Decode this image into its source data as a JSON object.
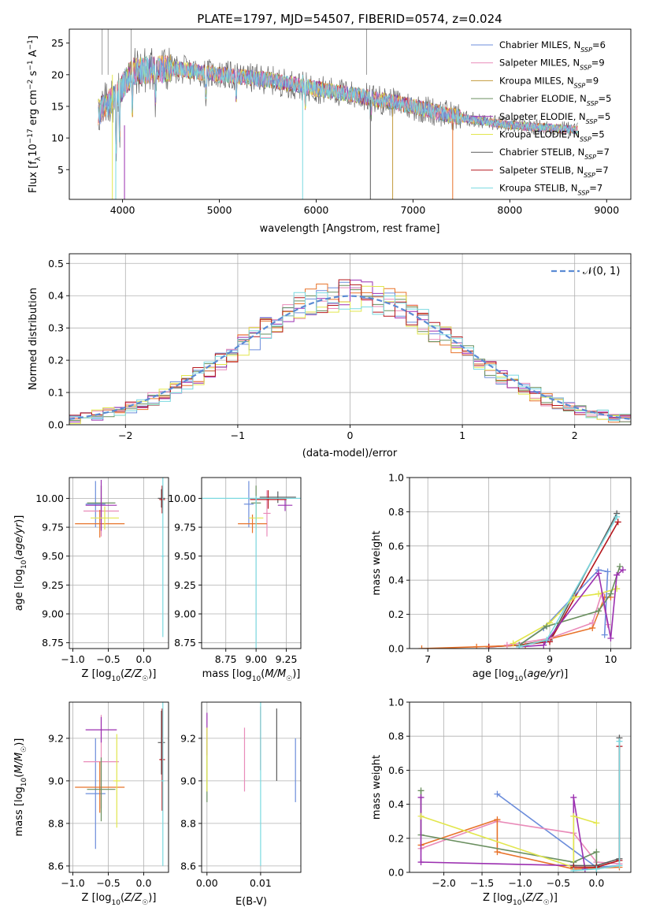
{
  "colors": {
    "chabrier_miles": "#6c8ddb",
    "salpeter_miles": "#e98bb9",
    "kroupa_miles": "#c29a3c",
    "chabrier_elodie": "#6a8f5f",
    "salpeter_elodie": "#9b2fb0",
    "kroupa_elodie": "#e2e64d",
    "chabrier_stelib": "#5b5b5b",
    "salpeter_stelib": "#b5171d",
    "kroupa_stelib": "#7ad9e0",
    "extra_orange": "#e8732a",
    "gaussian": "#5b8bd4"
  },
  "chart_data": [
    {
      "type": "line",
      "title": "PLATE=1797, MJD=54507, FIBERID=0574, z=0.024",
      "xlabel": "wavelength [Angstrom, rest frame]",
      "ylabel": "Flux [f_λ 10^-17 erg cm^-2 s^-1 A^-1]",
      "xlim": [
        3450,
        9250
      ],
      "ylim": [
        0.3,
        27.2
      ],
      "xticks": [
        "4000",
        "5000",
        "6000",
        "7000",
        "8000",
        "9000"
      ],
      "yticks": [
        "5",
        "10",
        "15",
        "20",
        "25"
      ],
      "series": [
        {
          "name": "Chabrier MILES",
          "nssp": "6"
        },
        {
          "name": "Salpeter MILES",
          "nssp": "9"
        },
        {
          "name": "Kroupa MILES",
          "nssp": "9"
        },
        {
          "name": "Chabrier ELODIE",
          "nssp": "5"
        },
        {
          "name": "Salpeter ELODIE",
          "nssp": "5"
        },
        {
          "name": "Kroupa ELODIE",
          "nssp": "5"
        },
        {
          "name": "Chabrier STELIB",
          "nssp": "7"
        },
        {
          "name": "Salpeter STELIB",
          "nssp": "7"
        },
        {
          "name": "Kroupa STELIB",
          "nssp": "7"
        }
      ],
      "continuum_points": [
        [
          3750,
          14
        ],
        [
          3950,
          17
        ],
        [
          4100,
          20.5
        ],
        [
          4500,
          21
        ],
        [
          5000,
          20
        ],
        [
          5500,
          19.2
        ],
        [
          6000,
          17.8
        ],
        [
          6500,
          16.5
        ],
        [
          7000,
          15
        ],
        [
          7500,
          13.2
        ],
        [
          8000,
          12
        ],
        [
          8500,
          11.5
        ],
        [
          8700,
          11.3
        ]
      ],
      "grid": false,
      "legend": "top-right"
    },
    {
      "type": "histogram",
      "xlabel": "(data-model)/error",
      "ylabel": "Normed distribution",
      "xlim": [
        -2.5,
        2.5
      ],
      "ylim": [
        0,
        0.53
      ],
      "xticks": [
        "−2",
        "−1",
        "0",
        "1",
        "2"
      ],
      "yticks": [
        "0.0",
        "0.1",
        "0.2",
        "0.3",
        "0.4",
        "0.5"
      ],
      "bin_edges_start": -2.5,
      "bin_width": 0.1,
      "reference_curve": {
        "name": "𝒩(0, 1)",
        "mean": 0,
        "sigma": 1
      },
      "envelope": [
        0.018,
        0.022,
        0.03,
        0.038,
        0.046,
        0.055,
        0.066,
        0.079,
        0.094,
        0.11,
        0.13,
        0.15,
        0.17,
        0.195,
        0.22,
        0.245,
        0.27,
        0.295,
        0.32,
        0.345,
        0.365,
        0.38,
        0.39,
        0.398,
        0.4,
        0.4,
        0.398,
        0.39,
        0.38,
        0.365,
        0.345,
        0.32,
        0.295,
        0.27,
        0.245,
        0.22,
        0.195,
        0.17,
        0.15,
        0.13,
        0.11,
        0.094,
        0.079,
        0.066,
        0.055,
        0.046,
        0.038,
        0.03,
        0.022,
        0.018
      ],
      "grid": true,
      "legend": "top-right"
    },
    {
      "type": "scatter",
      "xlabel": "Z [log10(Z/Z☉)]",
      "ylabel": "age  [log10(age/yr)]",
      "xlim": [
        -1.05,
        0.35
      ],
      "ylim": [
        8.7,
        10.18
      ],
      "xticks": [
        "−1.0",
        "−0.5",
        "0.0"
      ],
      "yticks": [
        "8.75",
        "9.00",
        "9.25",
        "9.50",
        "9.75",
        "10.00"
      ],
      "points": [
        {
          "x": -0.68,
          "y": 9.95,
          "xerr": 0.14,
          "yerr": 0.2,
          "c": "chabrier_miles"
        },
        {
          "x": -0.6,
          "y": 9.89,
          "xerr": 0.25,
          "yerr": 0.22,
          "c": "salpeter_miles"
        },
        {
          "x": -0.62,
          "y": 9.78,
          "xerr": 0.35,
          "yerr": 0.12,
          "c": "extra_orange"
        },
        {
          "x": -0.6,
          "y": 9.96,
          "xerr": 0.2,
          "yerr": 0.15,
          "c": "chabrier_elodie"
        },
        {
          "x": -0.6,
          "y": 9.94,
          "xerr": 0.22,
          "yerr": 0.22,
          "c": "salpeter_elodie"
        },
        {
          "x": -0.55,
          "y": 9.83,
          "xerr": 0.2,
          "yerr": 0.1,
          "c": "kroupa_elodie"
        },
        {
          "x": 0.25,
          "y": 10.0,
          "xerr": 0.05,
          "yerr": 0.08,
          "c": "chabrier_stelib"
        },
        {
          "x": 0.26,
          "y": 9.99,
          "xerr": 0.04,
          "yerr": 0.12,
          "c": "salpeter_stelib"
        },
        {
          "x": 0.27,
          "y": 9.5,
          "xerr": 0.02,
          "yerr": 0.7,
          "c": "kroupa_stelib"
        }
      ],
      "grid": true
    },
    {
      "type": "scatter",
      "xlabel": "mass [log10(M/M☉)]",
      "ylabel": "",
      "xlim": [
        8.55,
        9.37
      ],
      "ylim": [
        8.7,
        10.18
      ],
      "xticks": [
        "8.75",
        "9.00",
        "9.25"
      ],
      "yticks": [
        "8.75",
        "9.00",
        "9.25",
        "9.50",
        "9.75",
        "10.00"
      ],
      "points": [
        {
          "x": 8.94,
          "y": 9.95,
          "xerr": 0.04,
          "yerr": 0.2,
          "c": "chabrier_miles"
        },
        {
          "x": 9.09,
          "y": 9.87,
          "xerr": 0.03,
          "yerr": 0.2,
          "c": "salpeter_miles"
        },
        {
          "x": 8.97,
          "y": 9.78,
          "xerr": 0.12,
          "yerr": 0.08,
          "c": "extra_orange"
        },
        {
          "x": 9.0,
          "y": 9.96,
          "xerr": 0.04,
          "yerr": 0.15,
          "c": "chabrier_elodie"
        },
        {
          "x": 9.24,
          "y": 9.94,
          "xerr": 0.06,
          "yerr": 0.05,
          "c": "salpeter_elodie"
        },
        {
          "x": 9.0,
          "y": 9.83,
          "xerr": 0.06,
          "yerr": 0.1,
          "c": "kroupa_elodie"
        },
        {
          "x": 9.18,
          "y": 10.01,
          "xerr": 0.15,
          "yerr": 0.05,
          "c": "chabrier_stelib"
        },
        {
          "x": 9.1,
          "y": 9.99,
          "xerr": 0.15,
          "yerr": 0.08,
          "c": "salpeter_stelib"
        },
        {
          "x": 9.0,
          "y": 10.0,
          "xerr": 0.5,
          "yerr": 0.02,
          "c": "kroupa_stelib"
        },
        {
          "x": 9.0,
          "y": 9.1,
          "xerr": 0.0,
          "yerr": 0.9,
          "c": "kroupa_stelib"
        }
      ],
      "grid": true
    },
    {
      "type": "line",
      "xlabel": "age  [log10(age/yr)]",
      "ylabel": "mass weight",
      "xlim": [
        6.7,
        10.33
      ],
      "ylim": [
        0,
        1
      ],
      "xticks": [
        "7",
        "8",
        "9",
        "10"
      ],
      "yticks": [
        "0.0",
        "0.2",
        "0.4",
        "0.6",
        "0.8",
        "1.0"
      ],
      "series": [
        {
          "c": "chabrier_stelib",
          "points": [
            [
              8.0,
              0.01
            ],
            [
              8.5,
              0.02
            ],
            [
              9.0,
              0.05
            ],
            [
              10.1,
              0.79
            ]
          ]
        },
        {
          "c": "salpeter_stelib",
          "points": [
            [
              8.0,
              0.01
            ],
            [
              8.5,
              0.02
            ],
            [
              9.0,
              0.04
            ],
            [
              10.12,
              0.74
            ]
          ]
        },
        {
          "c": "extra_orange",
          "points": [
            [
              6.9,
              0.0
            ],
            [
              7.8,
              0.01
            ],
            [
              8.6,
              0.02
            ],
            [
              9.7,
              0.12
            ],
            [
              9.9,
              0.3
            ],
            [
              10.0,
              0.3
            ]
          ]
        },
        {
          "c": "salpeter_miles",
          "points": [
            [
              8.3,
              0.02
            ],
            [
              9.0,
              0.06
            ],
            [
              9.7,
              0.15
            ],
            [
              9.85,
              0.32
            ],
            [
              9.95,
              0.14
            ]
          ]
        },
        {
          "c": "chabrier_miles",
          "points": [
            [
              8.5,
              0.02
            ],
            [
              8.9,
              0.12
            ],
            [
              9.8,
              0.46
            ],
            [
              9.95,
              0.45
            ],
            [
              9.9,
              0.08
            ]
          ]
        },
        {
          "c": "kroupa_elodie",
          "points": [
            [
              8.4,
              0.03
            ],
            [
              9.0,
              0.15
            ],
            [
              9.4,
              0.3
            ],
            [
              9.8,
              0.32
            ],
            [
              10.1,
              0.35
            ]
          ]
        },
        {
          "c": "chabrier_elodie",
          "points": [
            [
              8.5,
              0.02
            ],
            [
              8.95,
              0.13
            ],
            [
              9.8,
              0.22
            ],
            [
              10.0,
              0.32
            ],
            [
              10.15,
              0.48
            ]
          ]
        },
        {
          "c": "salpeter_elodie",
          "points": [
            [
              8.5,
              0.01
            ],
            [
              8.9,
              0.02
            ],
            [
              9.8,
              0.44
            ],
            [
              10.0,
              0.06
            ],
            [
              10.1,
              0.43
            ],
            [
              10.2,
              0.46
            ]
          ]
        },
        {
          "c": "kroupa_stelib",
          "points": [
            [
              8.5,
              0.01
            ],
            [
              8.95,
              0.05
            ],
            [
              10.1,
              0.77
            ]
          ]
        }
      ],
      "grid": true
    },
    {
      "type": "scatter",
      "xlabel": "Z [log10(Z/Z☉)]",
      "ylabel": "mass [log10(M/M☉)]",
      "xlim": [
        -1.05,
        0.35
      ],
      "ylim": [
        8.57,
        9.37
      ],
      "xticks": [
        "−1.0",
        "−0.5",
        "0.0"
      ],
      "yticks": [
        "8.6",
        "8.8",
        "9.0",
        "9.2"
      ],
      "points": [
        {
          "x": -0.68,
          "y": 8.94,
          "xerr": 0.14,
          "yerr": 0.26,
          "c": "chabrier_miles"
        },
        {
          "x": -0.6,
          "y": 9.09,
          "xerr": 0.25,
          "yerr": 0.22,
          "c": "salpeter_miles"
        },
        {
          "x": -0.62,
          "y": 8.97,
          "xerr": 0.35,
          "yerr": 0.12,
          "c": "extra_orange"
        },
        {
          "x": -0.6,
          "y": 8.96,
          "xerr": 0.2,
          "yerr": 0.15,
          "c": "chabrier_elodie"
        },
        {
          "x": -0.6,
          "y": 9.24,
          "xerr": 0.22,
          "yerr": 0.06,
          "c": "salpeter_elodie"
        },
        {
          "x": -0.38,
          "y": 9.0,
          "xerr": 0.05,
          "yerr": 0.22,
          "c": "kroupa_elodie"
        },
        {
          "x": 0.25,
          "y": 9.18,
          "xerr": 0.05,
          "yerr": 0.15,
          "c": "chabrier_stelib"
        },
        {
          "x": 0.26,
          "y": 9.1,
          "xerr": 0.04,
          "yerr": 0.24,
          "c": "salpeter_stelib"
        },
        {
          "x": 0.27,
          "y": 9.0,
          "xerr": 0.02,
          "yerr": 0.4,
          "c": "kroupa_stelib"
        }
      ],
      "grid": true
    },
    {
      "type": "scatter",
      "xlabel": "E(B-V)",
      "ylabel": "",
      "xlim": [
        -0.001,
        0.0175
      ],
      "ylim": [
        8.57,
        9.37
      ],
      "xticks": [
        "0.00",
        "0.01"
      ],
      "yticks": [
        "8.6",
        "8.8",
        "9.0",
        "9.2"
      ],
      "points": [
        {
          "x": 0.0165,
          "y": 9.05,
          "xerr": 0,
          "yerr": 0.15,
          "c": "chabrier_miles"
        },
        {
          "x": 0.007,
          "y": 9.1,
          "xerr": 0,
          "yerr": 0.15,
          "c": "salpeter_miles"
        },
        {
          "x": 0.0,
          "y": 9.05,
          "xerr": 0,
          "yerr": 0.15,
          "c": "chabrier_elodie"
        },
        {
          "x": 0.0,
          "y": 9.22,
          "xerr": 0,
          "yerr": 0.1,
          "c": "salpeter_elodie"
        },
        {
          "x": 0.0,
          "y": 9.1,
          "xerr": 0,
          "yerr": 0.15,
          "c": "kroupa_elodie"
        },
        {
          "x": 0.013,
          "y": 9.17,
          "xerr": 0,
          "yerr": 0.17,
          "c": "chabrier_stelib"
        },
        {
          "x": 0.01,
          "y": 9.2,
          "xerr": 0,
          "yerr": 0.15,
          "c": "salpeter_stelib"
        },
        {
          "x": 0.01,
          "y": 9.0,
          "xerr": 0,
          "yerr": 0.4,
          "c": "kroupa_stelib"
        }
      ],
      "grid": true
    },
    {
      "type": "line",
      "xlabel": "Z [log10(Z/Z☉)]",
      "ylabel": "mass weight",
      "xlim": [
        -2.45,
        0.45
      ],
      "ylim": [
        0,
        1
      ],
      "xticks": [
        "−2.0",
        "−1.5",
        "−1.0",
        "−0.5",
        "0.0"
      ],
      "yticks": [
        "0.0",
        "0.2",
        "0.4",
        "0.6",
        "0.8",
        "1.0"
      ],
      "series": [
        {
          "c": "chabrier_miles",
          "points": [
            [
              -1.3,
              0.46
            ],
            [
              0.0,
              0.03
            ],
            [
              0.3,
              0.04
            ]
          ]
        },
        {
          "c": "salpeter_miles",
          "points": [
            [
              -2.3,
              0.14
            ],
            [
              -1.3,
              0.3
            ],
            [
              -0.3,
              0.23
            ],
            [
              0.0,
              0.06
            ],
            [
              0.3,
              0.05
            ]
          ]
        },
        {
          "c": "extra_orange",
          "points": [
            [
              -2.3,
              0.16
            ],
            [
              -1.3,
              0.31
            ],
            [
              -1.3,
              0.12
            ],
            [
              -0.3,
              0.02
            ],
            [
              0.3,
              0.03
            ]
          ]
        },
        {
          "c": "chabrier_elodie",
          "points": [
            [
              -2.3,
              0.48
            ],
            [
              -2.3,
              0.22
            ],
            [
              -0.3,
              0.06
            ],
            [
              0.0,
              0.12
            ],
            [
              0.0,
              0.02
            ]
          ]
        },
        {
          "c": "salpeter_elodie",
          "points": [
            [
              -2.3,
              0.44
            ],
            [
              -2.3,
              0.06
            ],
            [
              -0.3,
              0.04
            ],
            [
              -0.3,
              0.44
            ],
            [
              -0.15,
              0.02
            ]
          ]
        },
        {
          "c": "kroupa_elodie",
          "points": [
            [
              -2.3,
              0.33
            ],
            [
              -0.3,
              0.03
            ],
            [
              -0.3,
              0.33
            ],
            [
              0.0,
              0.29
            ]
          ]
        },
        {
          "c": "chabrier_stelib",
          "points": [
            [
              -0.3,
              0.04
            ],
            [
              0.0,
              0.04
            ],
            [
              0.3,
              0.08
            ],
            [
              0.3,
              0.79
            ]
          ]
        },
        {
          "c": "salpeter_stelib",
          "points": [
            [
              -0.3,
              0.03
            ],
            [
              0.0,
              0.03
            ],
            [
              0.3,
              0.07
            ],
            [
              0.3,
              0.74
            ]
          ]
        },
        {
          "c": "kroupa_stelib",
          "points": [
            [
              -0.3,
              0.01
            ],
            [
              0.0,
              0.02
            ],
            [
              0.3,
              0.04
            ],
            [
              0.3,
              0.77
            ]
          ]
        }
      ],
      "grid": true
    }
  ]
}
